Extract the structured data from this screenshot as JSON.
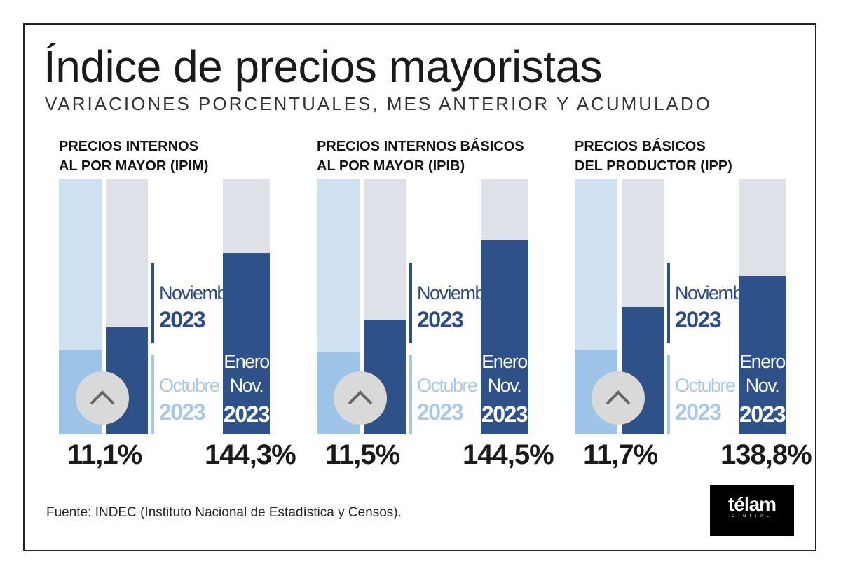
{
  "title": "Índice de precios mayoristas",
  "subtitle": "VARIACIONES PORCENTUALES, MES ANTERIOR Y ACUMULADO",
  "labels": {
    "nov_month": "Noviembre",
    "nov_year": "2023",
    "oct_month": "Octubre",
    "oct_year": "2023",
    "cum_1": "Enero",
    "cum_2": "Nov.",
    "cum_year": "2023"
  },
  "colors": {
    "oct_light": "#9dc3e6",
    "oct_track": "#cfe0f0",
    "nov_dark": "#2e5189",
    "track": "#dfe1e8",
    "label_dark": "#2e4a86",
    "label_light": "#a9c8e6"
  },
  "chart_data": [
    {
      "type": "bar",
      "title": "PRECIOS INTERNOS AL POR MAYOR (IPIM)",
      "title_lines": [
        "PRECIOS INTERNOS",
        "AL POR MAYOR (IPIM)"
      ],
      "monthly_label": "11,1%",
      "cumulative_label": "144,3%",
      "monthly_nov": 11.1,
      "cumulative": 144.3,
      "fill_fraction": {
        "october": 0.33,
        "november": 0.42,
        "cumulative": 0.71
      }
    },
    {
      "type": "bar",
      "title": "PRECIOS INTERNOS BÁSICOS AL POR MAYOR (IPIB)",
      "title_lines": [
        "PRECIOS INTERNOS BÁSICOS",
        "AL POR MAYOR (IPIB)"
      ],
      "monthly_label": "11,5%",
      "cumulative_label": "144,5%",
      "monthly_nov": 11.5,
      "cumulative": 144.5,
      "fill_fraction": {
        "october": 0.32,
        "november": 0.45,
        "cumulative": 0.76
      }
    },
    {
      "type": "bar",
      "title": "PRECIOS BÁSICOS DEL PRODUCTOR (IPP)",
      "title_lines": [
        "PRECIOS BÁSICOS",
        "DEL PRODUCTOR (IPP)"
      ],
      "monthly_label": "11,7%",
      "cumulative_label": "138,8%",
      "monthly_nov": 11.7,
      "cumulative": 138.8,
      "fill_fraction": {
        "october": 0.33,
        "november": 0.5,
        "cumulative": 0.62
      }
    }
  ],
  "source": "Fuente: INDEC (Instituto Nacional de Estadística y Censos).",
  "logo": {
    "name": "télam",
    "sub": "DIGITAL"
  }
}
